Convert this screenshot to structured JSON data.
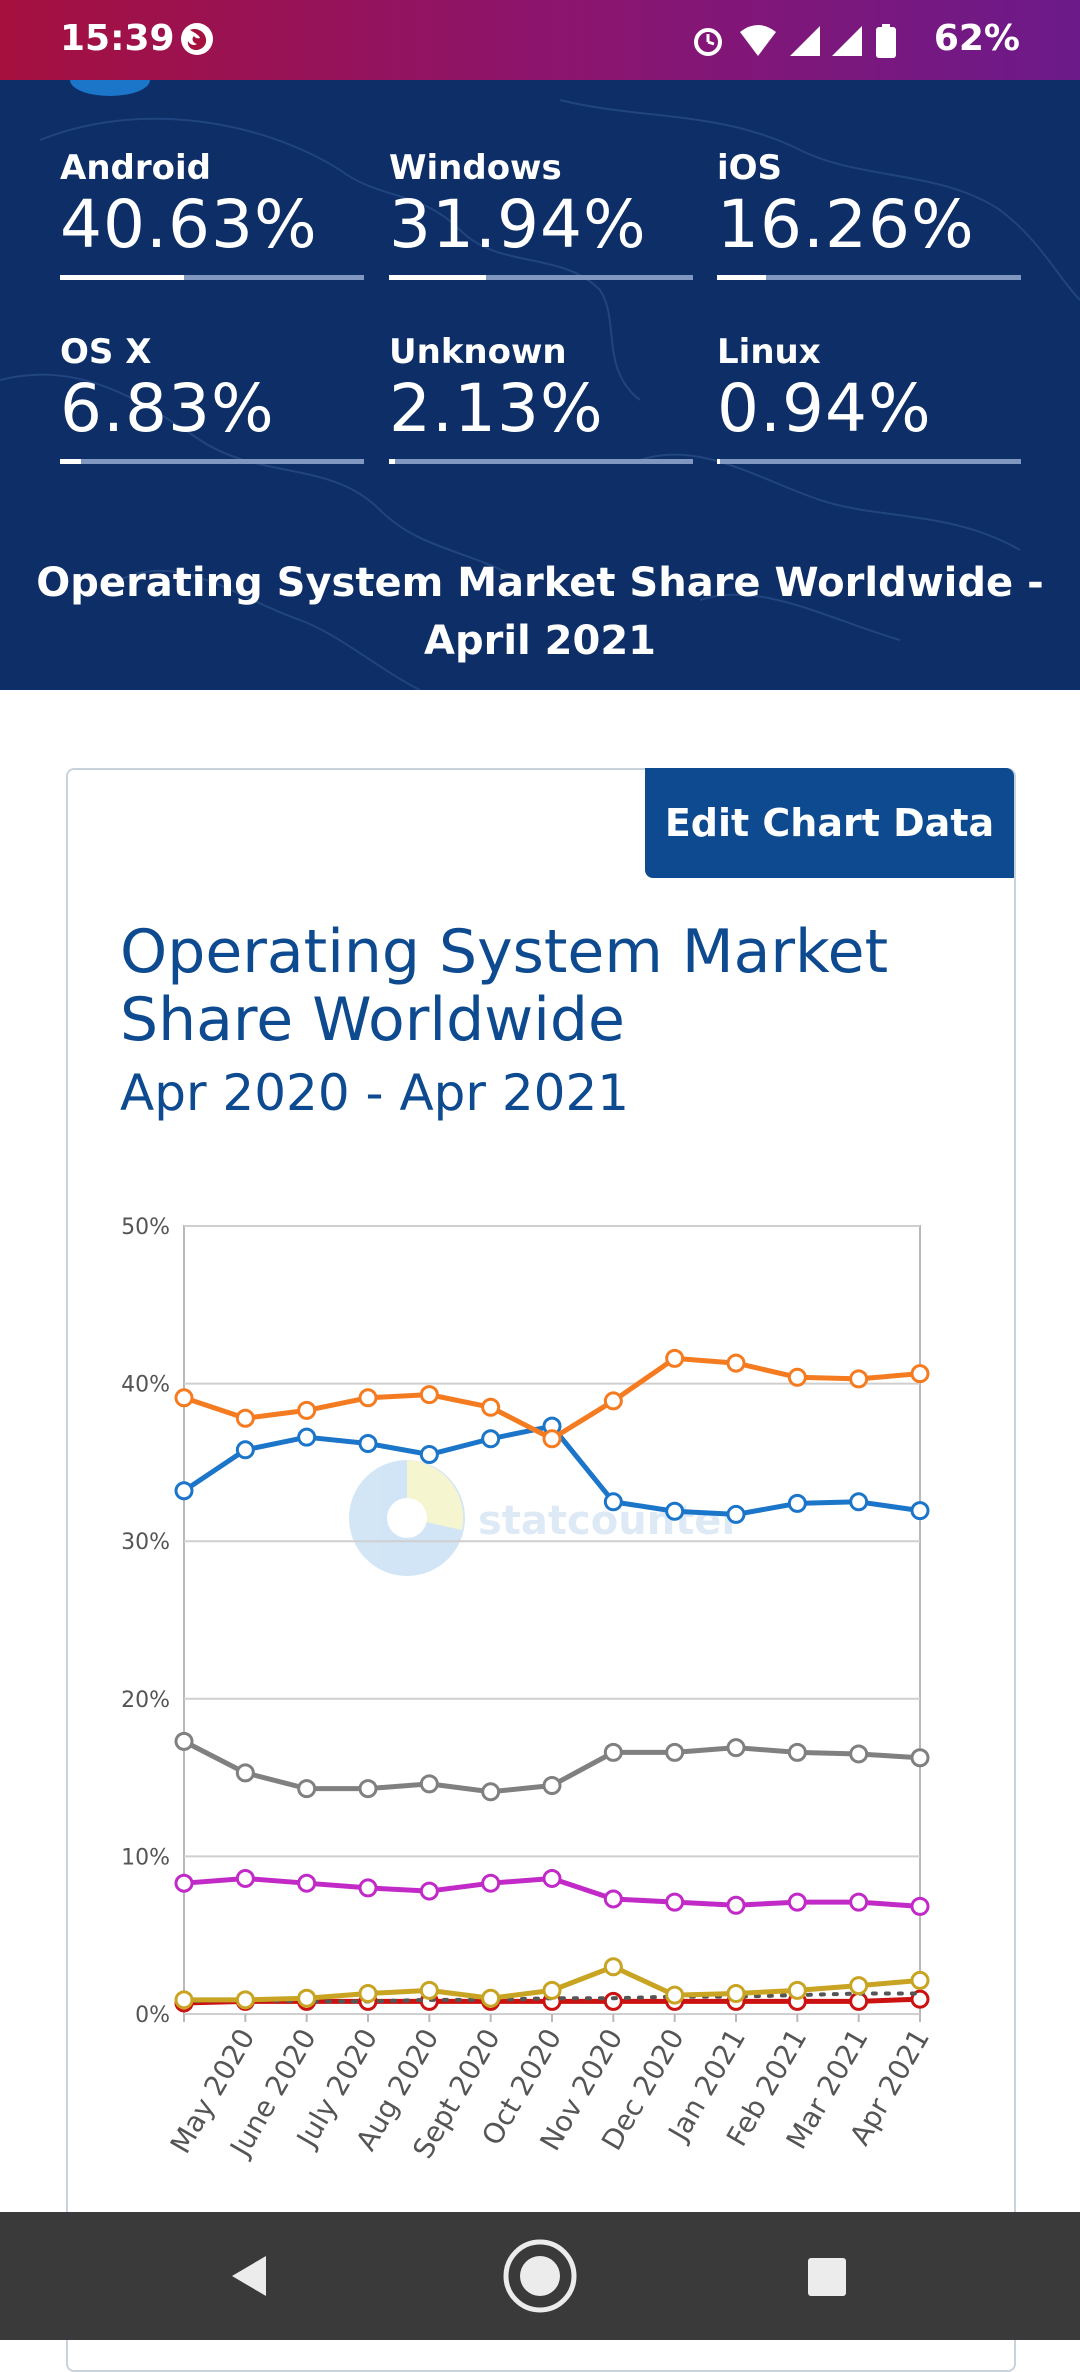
{
  "status_bar": {
    "time": "15:39",
    "battery": "62%",
    "app_icon": "firefox-icon",
    "icons": [
      "alarm-icon",
      "wifi-icon",
      "signal-icon",
      "signal-icon",
      "battery-icon"
    ]
  },
  "stats": [
    {
      "name": "Android",
      "value": "40.63%",
      "share": 40.63
    },
    {
      "name": "Windows",
      "value": "31.94%",
      "share": 31.94
    },
    {
      "name": "iOS",
      "value": "16.26%",
      "share": 16.26
    },
    {
      "name": "OS X",
      "value": "6.83%",
      "share": 6.83
    },
    {
      "name": "Unknown",
      "value": "2.13%",
      "share": 2.13
    },
    {
      "name": "Linux",
      "value": "0.94%",
      "share": 0.94
    }
  ],
  "hero_title": "Operating System Market Share Worldwide - April 2021",
  "edit_button": "Edit Chart Data",
  "chart_title": "Operating System Market Share Worldwide",
  "chart_subtitle": "Apr 2020 - Apr 2021",
  "watermark": "statcounter",
  "nav_bar": {
    "icons": [
      "back-icon",
      "home-icon",
      "recents-icon"
    ]
  },
  "chart_data": {
    "type": "line",
    "title": "Operating System Market Share Worldwide",
    "subtitle": "Apr 2020 - Apr 2021",
    "ylim": [
      0,
      50
    ],
    "yticks": [
      "0%",
      "10%",
      "20%",
      "30%",
      "40%",
      "50%"
    ],
    "ytick_values": [
      0,
      10,
      20,
      30,
      40,
      50
    ],
    "categories": [
      "",
      "May 2020",
      "June 2020",
      "July 2020",
      "Aug 2020",
      "Sept 2020",
      "Oct 2020",
      "Nov 2020",
      "Dec 2020",
      "Jan 2021",
      "Feb 2021",
      "Mar 2021",
      "Apr 2021"
    ],
    "grid": true,
    "series": [
      {
        "color": "#f47b20",
        "values": [
          39.1,
          37.8,
          38.3,
          39.1,
          39.3,
          38.5,
          36.5,
          38.9,
          41.6,
          41.3,
          40.4,
          40.3,
          40.63
        ]
      },
      {
        "color": "#1b75c9",
        "values": [
          33.2,
          35.8,
          36.6,
          36.2,
          35.5,
          36.5,
          37.3,
          32.5,
          31.9,
          31.7,
          32.4,
          32.5,
          31.94
        ]
      },
      {
        "color": "#808080",
        "values": [
          17.3,
          15.3,
          14.3,
          14.3,
          14.6,
          14.1,
          14.5,
          16.6,
          16.6,
          16.9,
          16.6,
          16.5,
          16.26
        ]
      },
      {
        "color": "#c22ac8",
        "values": [
          8.3,
          8.6,
          8.3,
          8.0,
          7.8,
          8.3,
          8.6,
          7.3,
          7.1,
          6.9,
          7.1,
          7.1,
          6.83
        ]
      },
      {
        "color": "#c8a422",
        "values": [
          0.9,
          0.9,
          1.0,
          1.3,
          1.5,
          1.0,
          1.5,
          3.0,
          1.2,
          1.3,
          1.5,
          1.8,
          2.13
        ]
      },
      {
        "color": "#555555",
        "dashed": true,
        "markers": false,
        "values": [
          0.8,
          0.9,
          0.8,
          0.8,
          0.9,
          0.9,
          1.0,
          1.0,
          1.1,
          1.1,
          1.2,
          1.3,
          1.3
        ]
      },
      {
        "color": "#cc1111",
        "values": [
          0.7,
          0.8,
          0.8,
          0.8,
          0.8,
          0.8,
          0.8,
          0.8,
          0.8,
          0.8,
          0.8,
          0.8,
          0.94
        ]
      }
    ]
  }
}
